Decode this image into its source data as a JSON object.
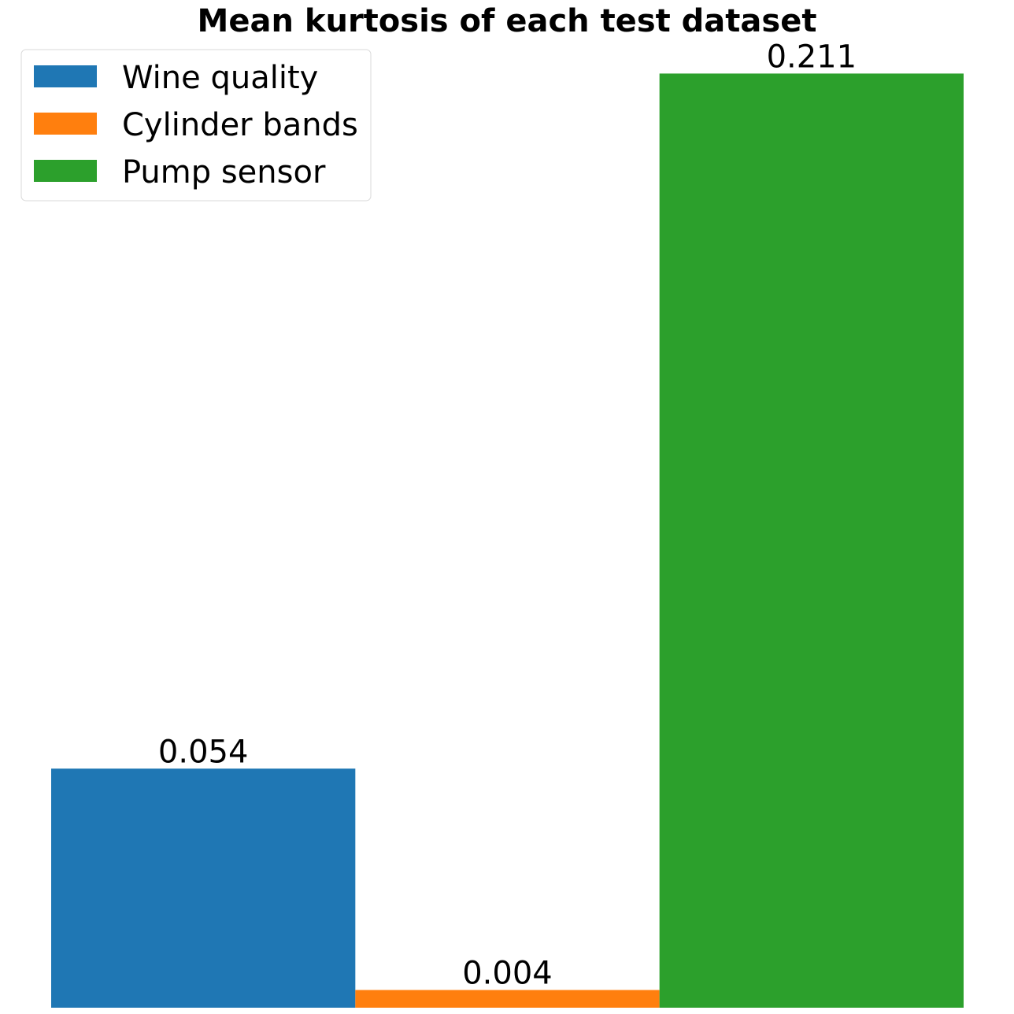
{
  "chart_data": {
    "type": "bar",
    "title": "Mean kurtosis of each test dataset",
    "xlabel": "",
    "ylabel": "",
    "ylim": [
      0,
      0.2205
    ],
    "grid": false,
    "legend_position": "top-left",
    "series": [
      {
        "name": "Wine quality",
        "values": [
          0.054
        ],
        "label": "0.054",
        "color": "#1f77b4"
      },
      {
        "name": "Cylinder bands",
        "values": [
          0.004
        ],
        "label": "0.004",
        "color": "#ff7f0e"
      },
      {
        "name": "Pump sensor",
        "values": [
          0.211
        ],
        "label": "0.211",
        "color": "#2ca02c"
      }
    ]
  }
}
